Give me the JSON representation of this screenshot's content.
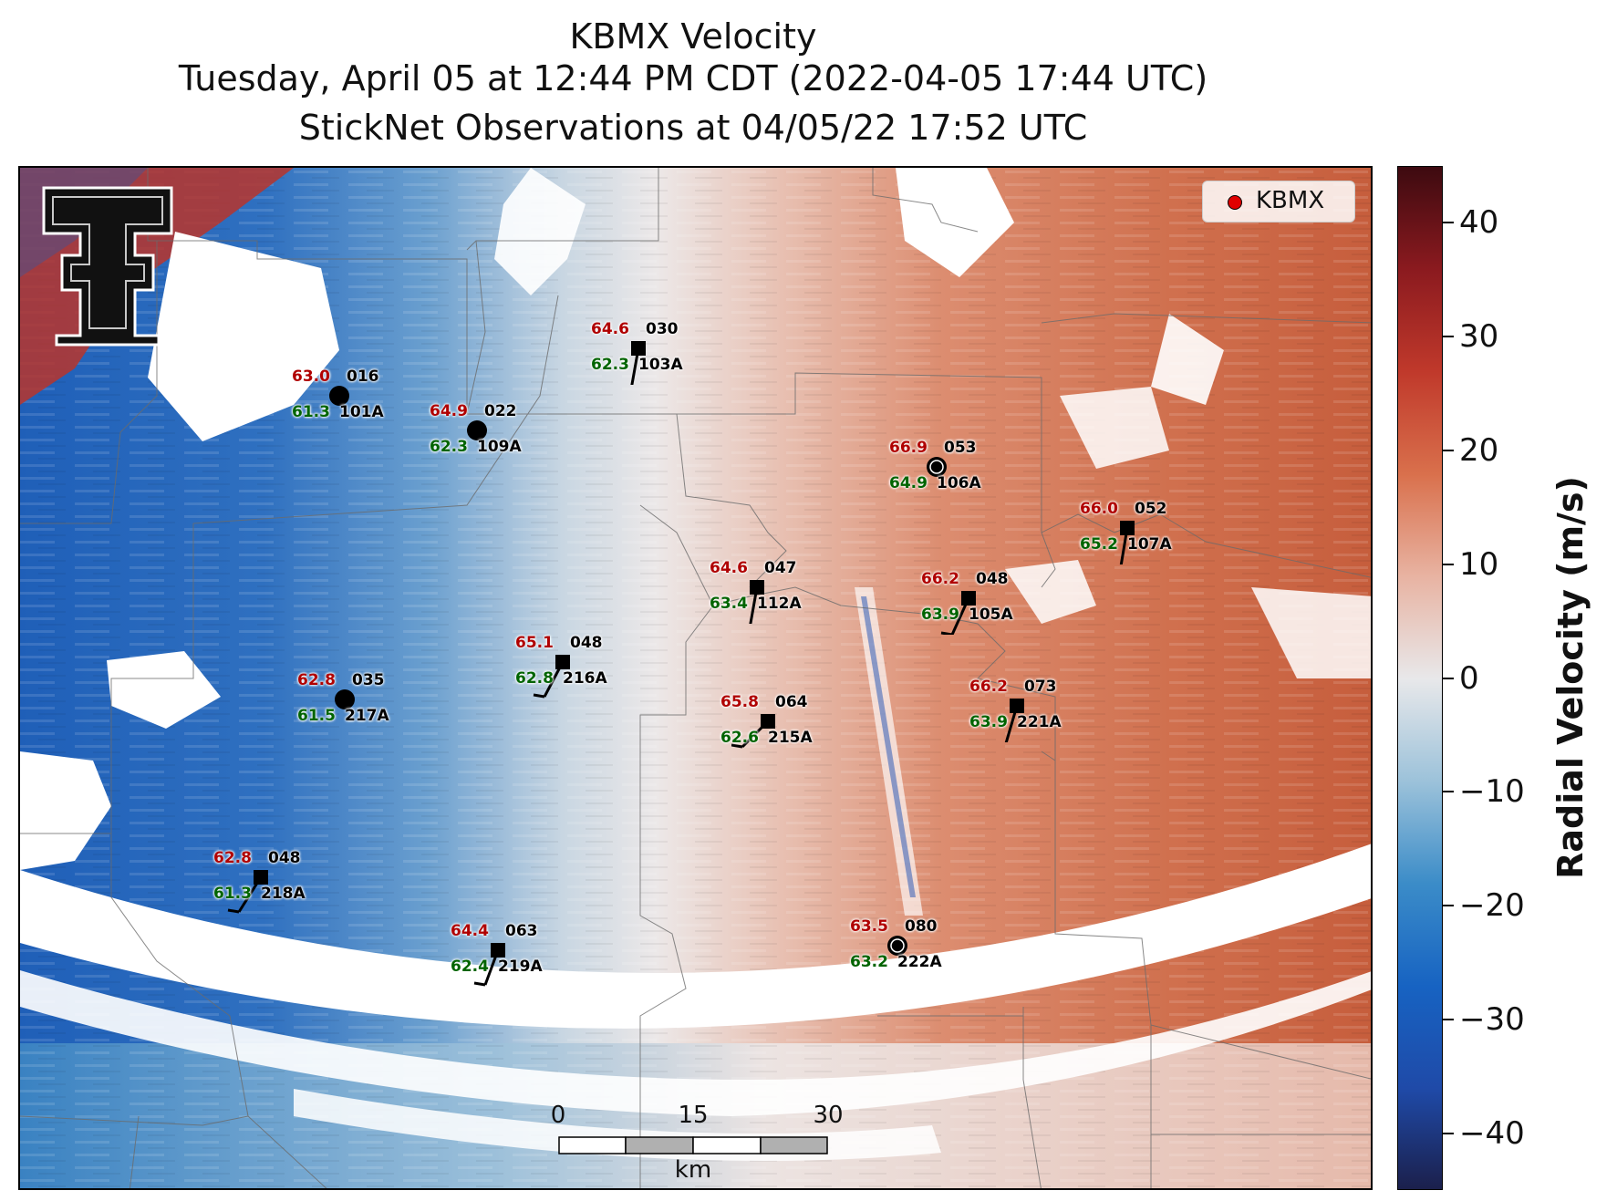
{
  "title": {
    "line1": "KBMX Velocity",
    "line2": "Tuesday, April 05 at 12:44 PM CDT (2022-04-05 17:44 UTC)",
    "line3": "StickNet Observations at 04/05/22 17:52 UTC"
  },
  "colorbar": {
    "label": "Radial Velocity (m/s)",
    "range": [
      -45,
      45
    ],
    "ticks": [
      40,
      30,
      20,
      10,
      0,
      -10,
      -20,
      -30,
      -40
    ],
    "tick_labels": [
      "40",
      "30",
      "20",
      "10",
      "0",
      "−10",
      "−20",
      "−30",
      "−40"
    ],
    "colors": [
      "#1b1f4a",
      "#1f4aa8",
      "#1763c2",
      "#3b8cc8",
      "#9cc2da",
      "#e8e8ea",
      "#e8b3a2",
      "#d9704c",
      "#c0392b",
      "#8b1a1f",
      "#3d0a10"
    ]
  },
  "legend": {
    "label": "KBMX",
    "marker_color": "#e00000"
  },
  "scalebar": {
    "ticks": [
      "0",
      "15",
      "30"
    ],
    "unit": "km"
  },
  "logo": {
    "name": "texas-tech-double-t-logo"
  },
  "stations": [
    {
      "id": "030",
      "probe": "103A",
      "temp": "64.6",
      "dew": "62.3",
      "marker": "square"
    },
    {
      "id": "016",
      "probe": "101A",
      "temp": "63.0",
      "dew": "61.3",
      "marker": "circle"
    },
    {
      "id": "022",
      "probe": "109A",
      "temp": "64.9",
      "dew": "62.3",
      "marker": "circle"
    },
    {
      "id": "053",
      "probe": "106A",
      "temp": "66.9",
      "dew": "64.9",
      "marker": "circle-calm"
    },
    {
      "id": "052",
      "probe": "107A",
      "temp": "66.0",
      "dew": "65.2",
      "marker": "square"
    },
    {
      "id": "047",
      "probe": "112A",
      "temp": "64.6",
      "dew": "63.4",
      "marker": "square"
    },
    {
      "id": "048",
      "probe": "105A",
      "temp": "66.2",
      "dew": "63.9",
      "marker": "square"
    },
    {
      "id": "048",
      "probe": "216A",
      "temp": "65.1",
      "dew": "62.8",
      "marker": "square"
    },
    {
      "id": "035",
      "probe": "217A",
      "temp": "62.8",
      "dew": "61.5",
      "marker": "circle"
    },
    {
      "id": "064",
      "probe": "215A",
      "temp": "65.8",
      "dew": "62.6",
      "marker": "square"
    },
    {
      "id": "073",
      "probe": "221A",
      "temp": "66.2",
      "dew": "63.9",
      "marker": "square"
    },
    {
      "id": "048",
      "probe": "218A",
      "temp": "62.8",
      "dew": "61.3",
      "marker": "square"
    },
    {
      "id": "063",
      "probe": "219A",
      "temp": "64.4",
      "dew": "62.4",
      "marker": "square"
    },
    {
      "id": "080",
      "probe": "222A",
      "temp": "63.5",
      "dew": "63.2",
      "marker": "circle-calm"
    }
  ]
}
